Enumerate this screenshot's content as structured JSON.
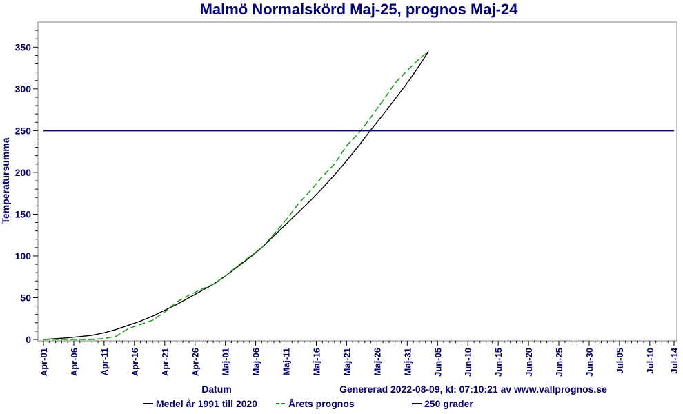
{
  "chart_data": {
    "type": "line",
    "title": "Malmö Normalskörd Maj-25, prognos Maj-24",
    "xlabel": "Datum",
    "ylabel": "Temperatursumma",
    "footer": "Genererad 2022-08-09, kl: 07:10:21 av www.vallprognos.se",
    "x_ticks": [
      "Apr-01",
      "Apr-06",
      "Apr-11",
      "Apr-16",
      "Apr-21",
      "Apr-26",
      "Maj-01",
      "Maj-06",
      "Maj-11",
      "Maj-16",
      "Maj-21",
      "Maj-26",
      "Maj-31",
      "Jun-05",
      "Jun-10",
      "Jun-15",
      "Jun-20",
      "Jun-25",
      "Jun-30",
      "Jul-05",
      "Jul-10",
      "Jul-14"
    ],
    "y_ticks": [
      "0",
      "50",
      "100",
      "150",
      "200",
      "250",
      "300",
      "350"
    ],
    "ylim": [
      0,
      380
    ],
    "grid": false,
    "legend_position": "bottom",
    "series": [
      {
        "name": "Medel år 1991 till 2020",
        "color": "#000000",
        "dash": "solid",
        "x": [
          0,
          2,
          4,
          6,
          8,
          10,
          12,
          14,
          16,
          18,
          20,
          22,
          24,
          26,
          28,
          30,
          32,
          34,
          36,
          38,
          40,
          42,
          44,
          46,
          48,
          50,
          52,
          54,
          56,
          58,
          60,
          62,
          63.5
        ],
        "y": [
          0,
          1,
          2,
          3.5,
          5,
          8,
          12,
          17,
          22,
          28,
          35,
          42,
          50,
          58,
          66,
          76,
          87,
          98,
          110,
          124,
          138,
          152,
          166,
          181,
          197,
          214,
          232,
          251,
          269,
          288,
          307,
          328,
          345
        ]
      },
      {
        "name": "Årets prognos",
        "color": "#00a000",
        "dash": "dashed",
        "x": [
          0,
          2,
          4,
          6,
          8,
          10,
          12,
          14,
          16,
          18,
          20,
          22,
          24,
          26,
          28,
          30,
          32,
          34,
          36,
          38,
          40,
          42,
          44,
          46,
          48,
          50,
          52,
          54,
          56,
          58,
          60,
          62,
          63.5
        ],
        "y": [
          0,
          0,
          0,
          0,
          0,
          1,
          4,
          13,
          18,
          23,
          33,
          45,
          53,
          60,
          66,
          76,
          88,
          99,
          110,
          126,
          143,
          162,
          178,
          195,
          210,
          232,
          247,
          266,
          286,
          307,
          322,
          336,
          345
        ]
      },
      {
        "name": "250 grader",
        "color": "#000080",
        "dash": "solid",
        "x": [
          0,
          104
        ],
        "y": [
          250,
          250
        ]
      }
    ]
  }
}
